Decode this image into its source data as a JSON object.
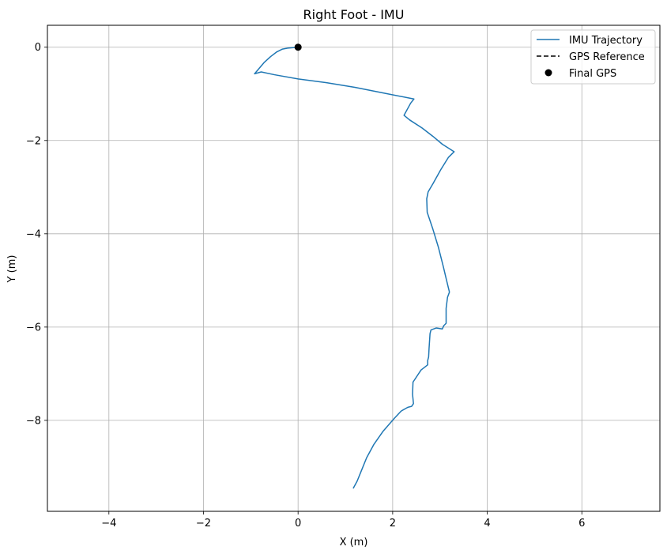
{
  "chart_data": {
    "type": "line",
    "title": "Right Foot - IMU",
    "xlabel": "X (m)",
    "ylabel": "Y (m)",
    "xlim": [
      -5.3,
      7.65
    ],
    "ylim": [
      -9.95,
      0.47
    ],
    "grid": true,
    "legend_position": "top-right",
    "x_ticks": [
      {
        "value": -4,
        "label": "−4"
      },
      {
        "value": -2,
        "label": "−2"
      },
      {
        "value": 0,
        "label": "0"
      },
      {
        "value": 2,
        "label": "2"
      },
      {
        "value": 4,
        "label": "4"
      },
      {
        "value": 6,
        "label": "6"
      }
    ],
    "y_ticks": [
      {
        "value": 0,
        "label": "0"
      },
      {
        "value": -2,
        "label": "−2"
      },
      {
        "value": -4,
        "label": "−4"
      },
      {
        "value": -6,
        "label": "−6"
      },
      {
        "value": -8,
        "label": "−8"
      }
    ],
    "series": [
      {
        "name": "IMU Trajectory",
        "style": "solid",
        "color": "#1f77b4",
        "points": [
          [
            0.0,
            0.0
          ],
          [
            -0.22,
            -0.02
          ],
          [
            -0.33,
            -0.04
          ],
          [
            -0.45,
            -0.1
          ],
          [
            -0.58,
            -0.2
          ],
          [
            -0.72,
            -0.33
          ],
          [
            -0.92,
            -0.57
          ],
          [
            -0.78,
            -0.53
          ],
          [
            -0.5,
            -0.59
          ],
          [
            0.0,
            -0.68
          ],
          [
            0.6,
            -0.76
          ],
          [
            1.2,
            -0.86
          ],
          [
            1.8,
            -0.98
          ],
          [
            2.45,
            -1.11
          ],
          [
            2.38,
            -1.2
          ],
          [
            2.24,
            -1.46
          ],
          [
            2.36,
            -1.56
          ],
          [
            2.62,
            -1.73
          ],
          [
            2.85,
            -1.91
          ],
          [
            3.05,
            -2.08
          ],
          [
            3.3,
            -2.24
          ],
          [
            3.18,
            -2.36
          ],
          [
            3.02,
            -2.62
          ],
          [
            2.85,
            -2.93
          ],
          [
            2.75,
            -3.1
          ],
          [
            2.72,
            -3.25
          ],
          [
            2.73,
            -3.54
          ],
          [
            2.85,
            -3.9
          ],
          [
            2.97,
            -4.3
          ],
          [
            3.07,
            -4.7
          ],
          [
            3.14,
            -5.0
          ],
          [
            3.2,
            -5.25
          ],
          [
            3.16,
            -5.36
          ],
          [
            3.13,
            -5.6
          ],
          [
            3.13,
            -5.92
          ],
          [
            3.08,
            -5.97
          ],
          [
            3.05,
            -6.04
          ],
          [
            2.92,
            -6.02
          ],
          [
            2.81,
            -6.06
          ],
          [
            2.79,
            -6.14
          ],
          [
            2.77,
            -6.45
          ],
          [
            2.76,
            -6.64
          ],
          [
            2.74,
            -6.72
          ],
          [
            2.74,
            -6.81
          ],
          [
            2.6,
            -6.92
          ],
          [
            2.43,
            -7.18
          ],
          [
            2.42,
            -7.44
          ],
          [
            2.44,
            -7.64
          ],
          [
            2.4,
            -7.7
          ],
          [
            2.32,
            -7.72
          ],
          [
            2.18,
            -7.8
          ],
          [
            2.04,
            -7.95
          ],
          [
            1.8,
            -8.23
          ],
          [
            1.6,
            -8.52
          ],
          [
            1.45,
            -8.8
          ],
          [
            1.33,
            -9.1
          ],
          [
            1.25,
            -9.3
          ],
          [
            1.17,
            -9.45
          ]
        ]
      },
      {
        "name": "GPS Reference",
        "style": "dashed",
        "color": "#000000",
        "points": []
      },
      {
        "name": "Final GPS",
        "style": "marker",
        "color": "#000000",
        "points": [
          [
            0.0,
            0.0
          ]
        ]
      }
    ]
  }
}
